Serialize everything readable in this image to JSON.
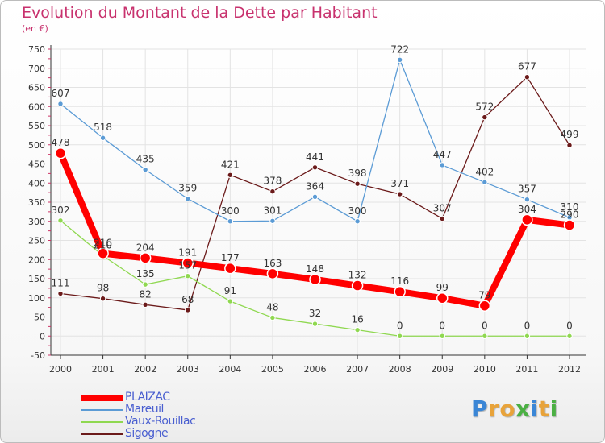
{
  "title": "Evolution du Montant de la Dette par Habitant",
  "subtitle": "(en €)",
  "colors": {
    "title": "#c8326e",
    "grid": "#e3e3e3",
    "axis": "#333333",
    "label": "#333333",
    "legend_text": "#4a5fd0"
  },
  "chart_data": {
    "type": "line",
    "title": "Evolution du Montant de la Dette par Habitant",
    "subtitle": "(en €)",
    "xlabel": "",
    "ylabel": "",
    "x": [
      "2000",
      "2001",
      "2002",
      "2003",
      "2004",
      "2005",
      "2006",
      "2007",
      "2008",
      "2009",
      "2010",
      "2011",
      "2012"
    ],
    "ylim": [
      -50,
      750
    ],
    "yticks": [
      -50,
      0,
      50,
      100,
      150,
      200,
      250,
      300,
      350,
      400,
      450,
      500,
      550,
      600,
      650,
      700,
      750
    ],
    "grid": true,
    "legend_position": "bottom-left",
    "series": [
      {
        "name": "Sigogne",
        "color": "#6b1a1a",
        "values": [
          111,
          98,
          82,
          68,
          421,
          378,
          441,
          398,
          371,
          307,
          572,
          677,
          499
        ]
      },
      {
        "name": "Vaux-Rouillac",
        "color": "#8fd850",
        "values": [
          302,
          210,
          135,
          157,
          91,
          48,
          32,
          16,
          0,
          0,
          0,
          0,
          0
        ]
      },
      {
        "name": "Mareuil",
        "color": "#5b9bd5",
        "values": [
          607,
          518,
          435,
          359,
          300,
          301,
          364,
          300,
          722,
          447,
          402,
          357,
          310
        ]
      },
      {
        "name": "PLAIZAC",
        "color": "#ff0000",
        "values": [
          478,
          216,
          204,
          191,
          177,
          163,
          148,
          132,
          116,
          99,
          79,
          304,
          290
        ]
      }
    ],
    "legend_order": [
      "PLAIZAC",
      "Mareuil",
      "Vaux-Rouillac",
      "Sigogne"
    ]
  },
  "logo": {
    "letters": [
      {
        "ch": "P",
        "color": "#3a86d6"
      },
      {
        "ch": "r",
        "color": "#e8a33a"
      },
      {
        "ch": "o",
        "color": "#e8a33a"
      },
      {
        "ch": "x",
        "color": "#4bb043"
      },
      {
        "ch": "i",
        "color": "#3a86d6"
      },
      {
        "ch": "t",
        "color": "#e8a33a"
      },
      {
        "ch": "i",
        "color": "#4bb043"
      }
    ]
  }
}
